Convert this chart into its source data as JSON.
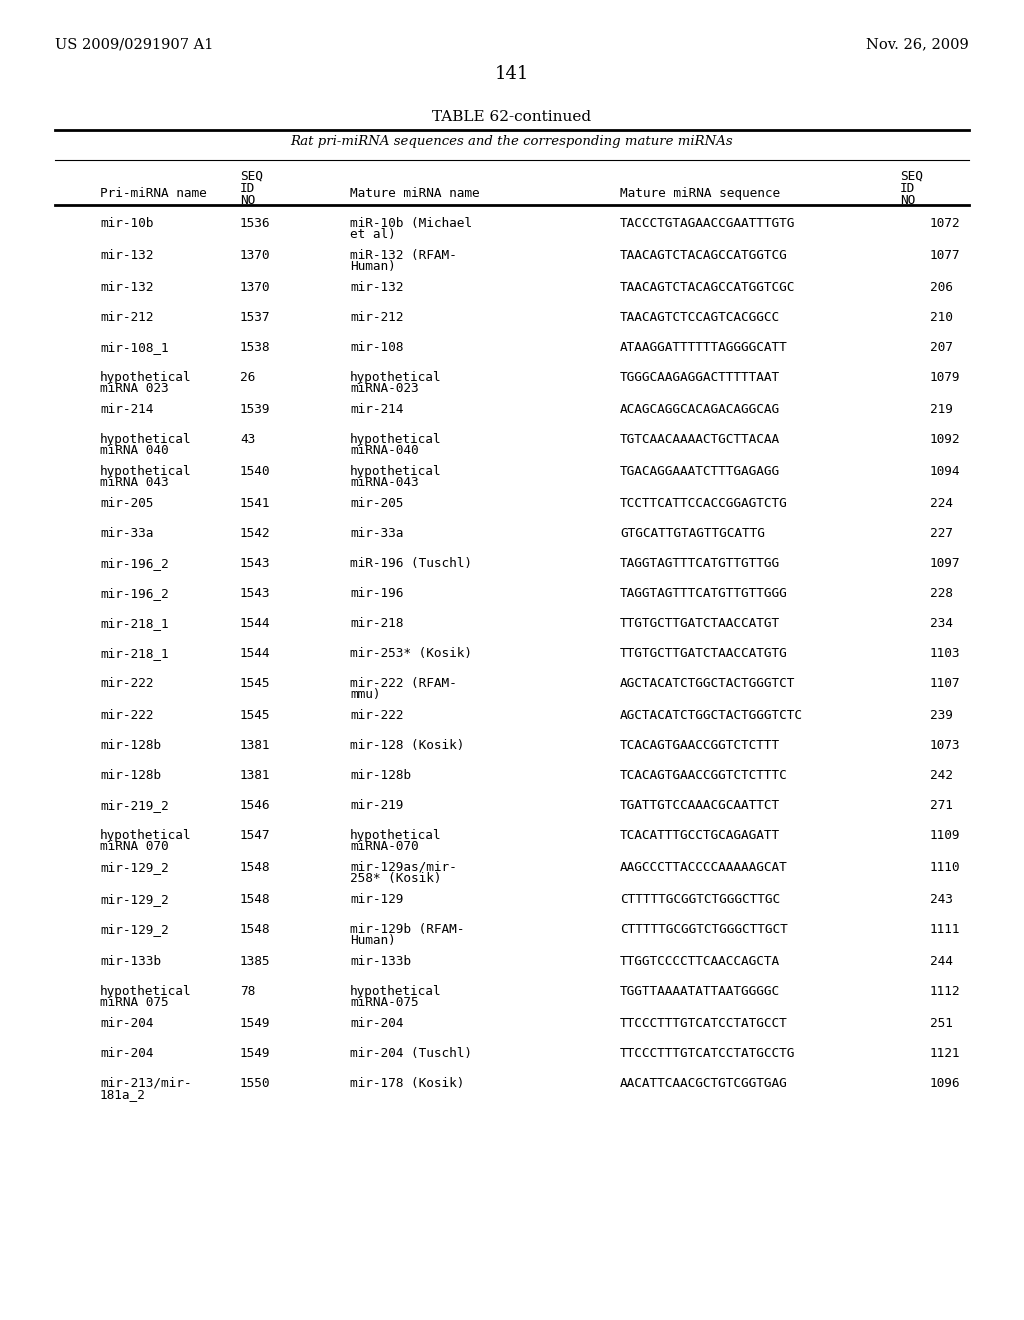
{
  "patent_left": "US 2009/0291907 A1",
  "patent_right": "Nov. 26, 2009",
  "page_number": "141",
  "table_title": "TABLE 62-continued",
  "table_subtitle": "Rat pri-miRNA sequences and the corresponding mature miRNAs",
  "col_headers": [
    "Pri-miRNA name",
    "SEQ\nID\nNO",
    "Mature miRNA name",
    "Mature miRNA sequence",
    "SEQ\nID\nNO"
  ],
  "col_headers_short": [
    "Pri-miRNA name",
    "SEQ ID NO",
    "Mature miRNA name",
    "Mature miRNA sequence",
    "SEQ ID NO"
  ],
  "rows": [
    [
      "mir-10b",
      "1536",
      "miR-10b (Michael\net al)",
      "TACCCTGTAGAACCGAATTTGTG",
      "1072"
    ],
    [
      "mir-132",
      "1370",
      "miR-132 (RFAM-\nHuman)",
      "TAACAGTCTACAGCCATGGTCG",
      "1077"
    ],
    [
      "mir-132",
      "1370",
      "mir-132",
      "TAACAGTCTACAGCCATGGTCGC",
      "206"
    ],
    [
      "mir-212",
      "1537",
      "mir-212",
      "TAACAGTCTCCAGTCACGGCC",
      "210"
    ],
    [
      "mir-108_1",
      "1538",
      "mir-108",
      "ATAAGGATTTTTTAGGGGCATT",
      "207"
    ],
    [
      "hypothetical\nmiRNA 023",
      "26",
      "hypothetical\nmiRNA-023",
      "TGGGCAAGAGGACTTTTTAAT",
      "1079"
    ],
    [
      "mir-214",
      "1539",
      "mir-214",
      "ACAGCAGGCACAGACAGGCAG",
      "219"
    ],
    [
      "hypothetical\nmiRNA 040",
      "43",
      "hypothetical\nmiRNA-040",
      "TGTCAACAAAACTGCTTACAA",
      "1092"
    ],
    [
      "hypothetical\nmiRNA 043",
      "1540",
      "hypothetical\nmiRNA-043",
      "TGACAGGAAATCTTTGAGAGG",
      "1094"
    ],
    [
      "mir-205",
      "1541",
      "mir-205",
      "TCCTTCATTCCACCGGAGTCTG",
      "224"
    ],
    [
      "mir-33a",
      "1542",
      "mir-33a",
      "GTGCATTGTAGTTGCATTG",
      "227"
    ],
    [
      "mir-196_2",
      "1543",
      "miR-196 (Tuschl)",
      "TAGGTAGTTTCATGTTGTTGG",
      "1097"
    ],
    [
      "mir-196_2",
      "1543",
      "mir-196",
      "TAGGTAGTTTCATGTTGTTGGG",
      "228"
    ],
    [
      "mir-218_1",
      "1544",
      "mir-218",
      "TTGTGCTTGATCTAACCATGT",
      "234"
    ],
    [
      "mir-218_1",
      "1544",
      "mir-253* (Kosik)",
      "TTGTGCTTGATCTAACCATGTG",
      "1103"
    ],
    [
      "mir-222",
      "1545",
      "mir-222 (RFAM-\nmmu)",
      "AGCTACATCTGGCTACTGGGTCT",
      "1107"
    ],
    [
      "mir-222",
      "1545",
      "mir-222",
      "AGCTACATCTGGCTACTGGGTCTC",
      "239"
    ],
    [
      "mir-128b",
      "1381",
      "mir-128 (Kosik)",
      "TCACAGTGAACCGGTCTCTTT",
      "1073"
    ],
    [
      "mir-128b",
      "1381",
      "mir-128b",
      "TCACAGTGAACCGGTCTCTTTC",
      "242"
    ],
    [
      "mir-219_2",
      "1546",
      "mir-219",
      "TGATTGTCCAAACGCAATTCT",
      "271"
    ],
    [
      "hypothetical\nmiRNA 070",
      "1547",
      "hypothetical\nmiRNA-070",
      "TCACATTTGCCTGCAGAGATT",
      "1109"
    ],
    [
      "mir-129_2",
      "1548",
      "mir-129as/mir-\n258* (Kosik)",
      "AAGCCCTTACCCCAAAAAGCAT",
      "1110"
    ],
    [
      "mir-129_2",
      "1548",
      "mir-129",
      "CTTTTTGCGGTCTGGGCTTGC",
      "243"
    ],
    [
      "mir-129_2",
      "1548",
      "mir-129b (RFAM-\nHuman)",
      "CTTTTTGCGGTCTGGGCTTGCT",
      "1111"
    ],
    [
      "mir-133b",
      "1385",
      "mir-133b",
      "TTGGTCCCCTTCAACCAGCTA",
      "244"
    ],
    [
      "hypothetical\nmiRNA 075",
      "78",
      "hypothetical\nmiRNA-075",
      "TGGTTAAAATATTAATGGGGC",
      "1112"
    ],
    [
      "mir-204",
      "1549",
      "mir-204",
      "TTCCCTTTGTCATCCTATGCCT",
      "251"
    ],
    [
      "mir-204",
      "1549",
      "mir-204 (Tuschl)",
      "TTCCCTTTGTCATCCTATGCCTG",
      "1121"
    ],
    [
      "mir-213/mir-\n181a_2",
      "1550",
      "mir-178 (Kosik)",
      "AACATTCAACGCTGTCGGTGAG",
      "1096"
    ]
  ],
  "bg_color": "#ffffff",
  "text_color": "#000000",
  "font_family": "monospace"
}
